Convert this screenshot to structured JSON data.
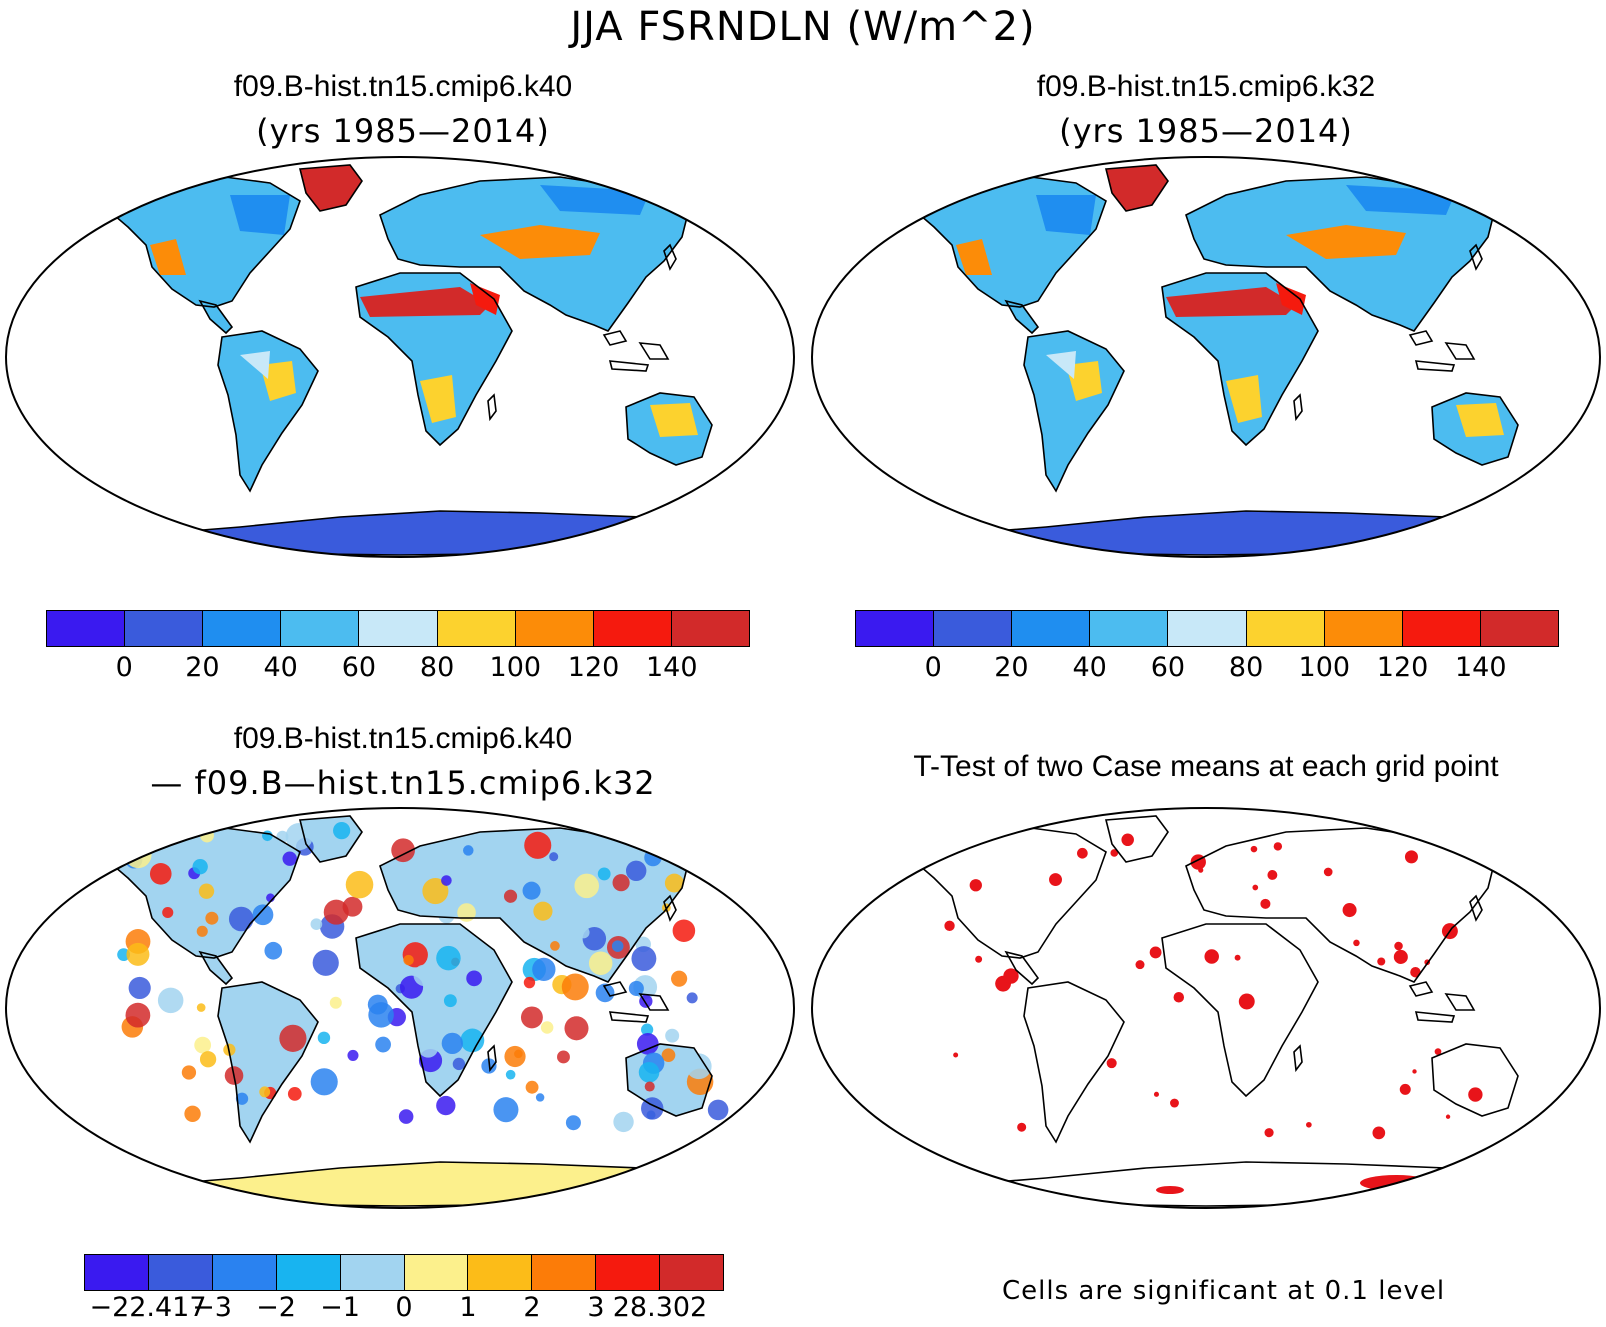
{
  "title": "JJA FSRNDLN (W/m^2)",
  "panels": {
    "top_left": {
      "title": "f09.B-hist.tn15.cmip6.k40",
      "subtitle": "(yrs 1985—2014)"
    },
    "top_right": {
      "title": "f09.B-hist.tn15.cmip6.k32",
      "subtitle": "(yrs 1985—2014)"
    },
    "bottom_left": {
      "title": "f09.B-hist.tn15.cmip6.k40",
      "subtitle": "— f09.B—hist.tn15.cmip6.k32"
    },
    "bottom_right": {
      "title": "T-Test of two Case means at each grid point",
      "note": "Cells are significant at 0.1 level"
    }
  },
  "colorbars": {
    "abs": {
      "colors": [
        "#3a1af0",
        "#3a5bdc",
        "#1f8ef0",
        "#4cbcf0",
        "#c8e8f8",
        "#fcd22e",
        "#fc8c08",
        "#f51a0e",
        "#d22a2a"
      ],
      "labels": [
        "0",
        "20",
        "40",
        "60",
        "80",
        "100",
        "120",
        "140"
      ]
    },
    "diff": {
      "colors": [
        "#3a1af0",
        "#3a5bdc",
        "#2a82f0",
        "#18b4f0",
        "#a2d4f0",
        "#fcf08c",
        "#fcbc18",
        "#fc7c08",
        "#f51a0e",
        "#d22a2a"
      ],
      "labels": [
        "−22.417",
        "−3",
        "−2",
        "−1",
        "0",
        "1",
        "2",
        "3",
        "28.302"
      ]
    }
  },
  "significance_color": "#e8141a"
}
